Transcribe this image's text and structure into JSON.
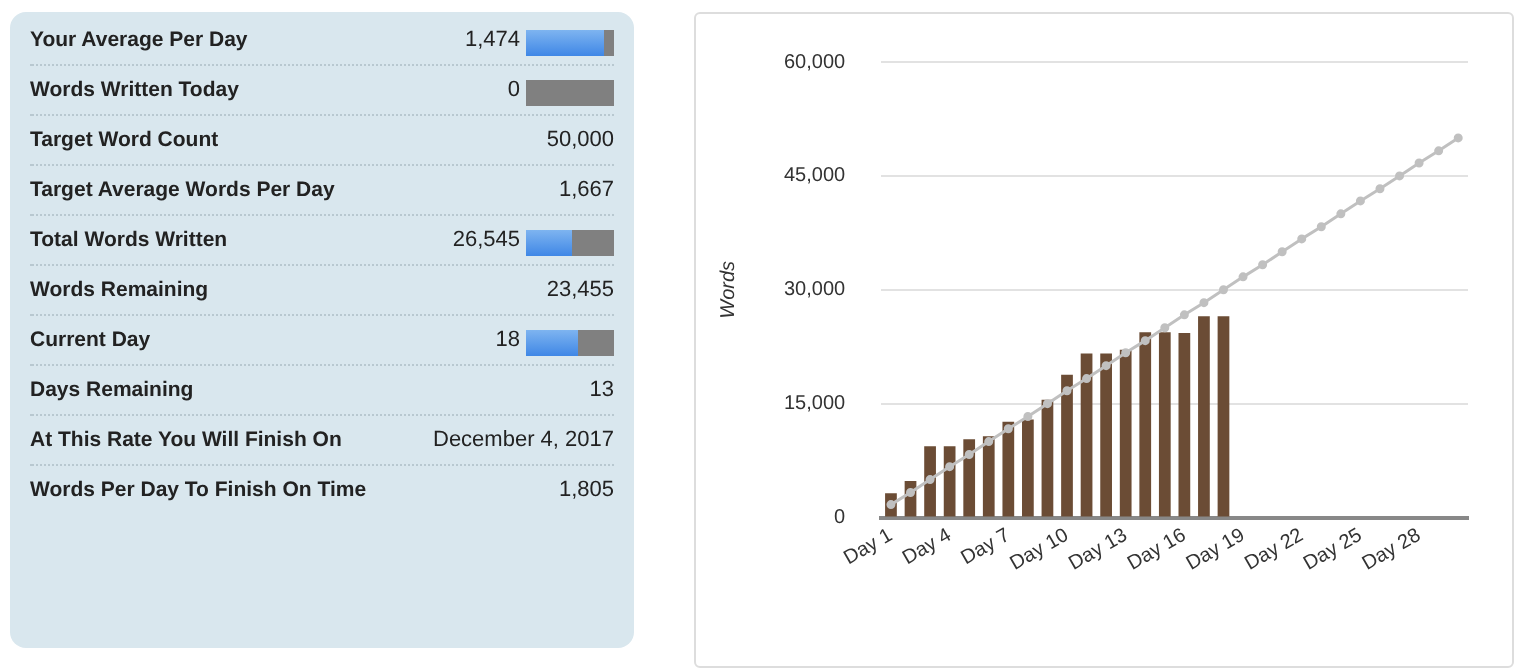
{
  "chart_data": [
    {
      "type": "other",
      "annotations": [
        "Your Average Per Day",
        "1,474",
        "Words Written Today",
        "0",
        "Target Word Count",
        "50,000",
        "Target Average Words Per Day",
        "1,667",
        "Total Words Written",
        "26,545",
        "Words Remaining",
        "23,455",
        "Current Day",
        "18",
        "Days Remaining",
        "13",
        "At This Rate You Will Finish On",
        "December 4, 2017",
        "Words Per Day To Finish On Time",
        "1,805"
      ]
    },
    {
      "type": "bar",
      "ylabel": "Words",
      "ylim": [
        0,
        60000
      ],
      "yticks": [
        0,
        {
          "value": 15000,
          "label": "15,000"
        },
        {
          "value": 30000,
          "label": "30,000"
        },
        {
          "value": 45000,
          "label": "45,000"
        },
        {
          "value": 60000,
          "label": "60,000"
        }
      ],
      "grid": "y",
      "legend": false,
      "marker": "circle",
      "categories": [
        "Day 1",
        null,
        null,
        "Day 4",
        null,
        null,
        "Day 7",
        null,
        null,
        "Day 10",
        null,
        null,
        "Day 13",
        null,
        null,
        "Day 16",
        null,
        null,
        "Day 19",
        null,
        null,
        "Day 22",
        null,
        null,
        "Day 25",
        null,
        null,
        "Day 28",
        null,
        null
      ],
      "series": [
        {
          "color": "#6b4c35",
          "values": [
            3200,
            4800,
            9400,
            9400,
            10300,
            10700,
            12600,
            12900,
            15500,
            18800,
            21600,
            21600,
            22100,
            24400,
            24400,
            24300,
            26500,
            26500,
            null,
            null,
            null,
            null,
            null,
            null,
            null,
            null,
            null,
            null,
            null,
            null
          ]
        },
        {
          "type": "line",
          "color": "#c0c0c0",
          "values": [
            1700,
            3300,
            5000,
            6700,
            8300,
            10000,
            11700,
            13300,
            15000,
            16700,
            18300,
            20000,
            21700,
            23300,
            25000,
            26700,
            28300,
            30000,
            31700,
            33300,
            35000,
            36700,
            38300,
            40000,
            41700,
            43300,
            45000,
            46700,
            48300,
            50000
          ]
        }
      ]
    }
  ]
}
